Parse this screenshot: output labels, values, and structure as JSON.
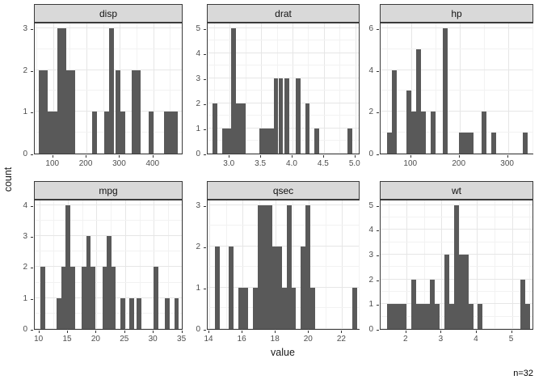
{
  "titles": {
    "x_axis": "value",
    "y_axis": "count"
  },
  "annotation": {
    "sample_size": "n=32"
  },
  "colors": {
    "bar_fill": "#595959",
    "strip_background": "#D9D9D9",
    "strip_text": "#141414",
    "panel_border": "#3B3B3B",
    "grid_major": "#E6E6E6",
    "grid_minor": "#F2F2F2",
    "tick_text": "#4D4D4D",
    "title_text": "#1A1A1A",
    "background": "#FFFFFF"
  },
  "chart_data": {
    "type": "bar",
    "subtype": "faceted-histograms",
    "x_axis_title": "value",
    "y_axis_title": "count",
    "legend": "none",
    "grid": "on",
    "facets": [
      {
        "label": "disp",
        "xmin": 45,
        "xmax": 490,
        "x_ticks": [
          100,
          200,
          300,
          400
        ],
        "x_tick_labels": [
          "100",
          "200",
          "300",
          "400"
        ],
        "x_minor": [
          50,
          150,
          250,
          350,
          450
        ],
        "y_max": 3,
        "y_ticks": [
          0,
          1,
          2,
          3
        ],
        "y_minor": [
          0.5,
          1.5,
          2.5
        ],
        "bars": [
          [
            57,
            71,
            2
          ],
          [
            71,
            84,
            2
          ],
          [
            84,
            98,
            1
          ],
          [
            98,
            112,
            1
          ],
          [
            112,
            125,
            3
          ],
          [
            125,
            139,
            3
          ],
          [
            139,
            153,
            2
          ],
          [
            153,
            166,
            2
          ],
          [
            217,
            231,
            1
          ],
          [
            254,
            268,
            1
          ],
          [
            268,
            281,
            3
          ],
          [
            288,
            302,
            2
          ],
          [
            302,
            316,
            1
          ],
          [
            336,
            350,
            2
          ],
          [
            350,
            363,
            2
          ],
          [
            386,
            400,
            1
          ],
          [
            432,
            445,
            1
          ],
          [
            445,
            459,
            1
          ],
          [
            459,
            472,
            1
          ]
        ]
      },
      {
        "label": "drat",
        "xmin": 2.65,
        "xmax": 5.08,
        "x_ticks": [
          3.0,
          3.5,
          4.0,
          4.5,
          5.0
        ],
        "x_tick_labels": [
          "3.0",
          "3.5",
          "4.0",
          "4.5",
          "5.0"
        ],
        "x_minor": [
          2.75,
          3.25,
          3.75,
          4.25,
          4.75
        ],
        "y_max": 5,
        "y_ticks": [
          0,
          1,
          2,
          3,
          4,
          5
        ],
        "y_minor": [
          0.5,
          1.5,
          2.5,
          3.5,
          4.5
        ],
        "bars": [
          [
            2.725,
            2.8,
            2
          ],
          [
            2.875,
            2.95,
            1
          ],
          [
            2.95,
            3.025,
            1
          ],
          [
            3.025,
            3.1,
            5
          ],
          [
            3.1,
            3.175,
            2
          ],
          [
            3.175,
            3.25,
            2
          ],
          [
            3.475,
            3.55,
            1
          ],
          [
            3.55,
            3.625,
            1
          ],
          [
            3.625,
            3.7,
            1
          ],
          [
            3.7,
            3.775,
            3
          ],
          [
            3.775,
            3.85,
            3
          ],
          [
            3.875,
            3.95,
            3
          ],
          [
            4.05,
            4.125,
            3
          ],
          [
            4.2,
            4.275,
            2
          ],
          [
            4.35,
            4.425,
            1
          ],
          [
            4.875,
            4.95,
            1
          ]
        ]
      },
      {
        "label": "hp",
        "xmin": 37,
        "xmax": 354,
        "x_ticks": [
          100,
          200,
          300
        ],
        "x_tick_labels": [
          "100",
          "200",
          "300"
        ],
        "x_minor": [
          50,
          150,
          250,
          350
        ],
        "y_max": 6,
        "y_ticks": [
          0,
          2,
          4,
          6
        ],
        "y_minor": [
          1,
          3,
          5
        ],
        "bars": [
          [
            51,
            61,
            1
          ],
          [
            61,
            71,
            4
          ],
          [
            91,
            101,
            3
          ],
          [
            101,
            111,
            2
          ],
          [
            111,
            121,
            5
          ],
          [
            121,
            131,
            2
          ],
          [
            141,
            151,
            2
          ],
          [
            165,
            175,
            6
          ],
          [
            199,
            209,
            1
          ],
          [
            209,
            219,
            1
          ],
          [
            219,
            229,
            1
          ],
          [
            245,
            255,
            2
          ],
          [
            265,
            275,
            1
          ],
          [
            331,
            341,
            1
          ]
        ]
      },
      {
        "label": "mpg",
        "xmin": 9.2,
        "xmax": 35.2,
        "x_ticks": [
          10,
          15,
          20,
          25,
          30,
          35
        ],
        "x_tick_labels": [
          "10",
          "15",
          "20",
          "25",
          "30",
          "35"
        ],
        "x_minor": [
          12.5,
          17.5,
          22.5,
          27.5,
          32.5
        ],
        "y_max": 4,
        "y_ticks": [
          0,
          1,
          2,
          3,
          4
        ],
        "y_minor": [
          0.5,
          1.5,
          2.5,
          3.5
        ],
        "bars": [
          [
            10.2,
            11.0,
            2
          ],
          [
            13.0,
            13.8,
            1
          ],
          [
            13.8,
            14.6,
            2
          ],
          [
            14.6,
            15.4,
            4
          ],
          [
            15.4,
            16.2,
            2
          ],
          [
            17.4,
            18.2,
            2
          ],
          [
            18.2,
            19.0,
            3
          ],
          [
            19.0,
            19.8,
            2
          ],
          [
            21.0,
            21.8,
            2
          ],
          [
            21.8,
            22.6,
            3
          ],
          [
            22.6,
            23.4,
            2
          ],
          [
            24.2,
            25.0,
            1
          ],
          [
            25.8,
            26.6,
            1
          ],
          [
            27.0,
            27.8,
            1
          ],
          [
            30.0,
            30.8,
            2
          ],
          [
            32.0,
            32.8,
            1
          ],
          [
            33.6,
            34.4,
            1
          ]
        ]
      },
      {
        "label": "qsec",
        "xmin": 13.9,
        "xmax": 23.1,
        "x_ticks": [
          14,
          16,
          18,
          20,
          22
        ],
        "x_tick_labels": [
          "14",
          "16",
          "18",
          "20",
          "22"
        ],
        "x_minor": [
          15,
          17,
          19,
          21,
          23
        ],
        "y_max": 3,
        "y_ticks": [
          0,
          1,
          2,
          3
        ],
        "y_minor": [
          0.5,
          1.5,
          2.5
        ],
        "bars": [
          [
            14.35,
            14.64,
            2
          ],
          [
            15.15,
            15.44,
            2
          ],
          [
            15.75,
            16.04,
            1
          ],
          [
            16.04,
            16.33,
            1
          ],
          [
            16.62,
            16.91,
            1
          ],
          [
            16.91,
            17.2,
            3
          ],
          [
            17.2,
            17.49,
            3
          ],
          [
            17.49,
            17.78,
            3
          ],
          [
            17.78,
            18.07,
            2
          ],
          [
            18.07,
            18.36,
            2
          ],
          [
            18.36,
            18.65,
            1
          ],
          [
            18.65,
            18.94,
            3
          ],
          [
            18.94,
            19.23,
            1
          ],
          [
            19.52,
            19.81,
            2
          ],
          [
            19.81,
            20.1,
            3
          ],
          [
            20.1,
            20.39,
            1
          ],
          [
            22.61,
            22.9,
            1
          ]
        ]
      },
      {
        "label": "wt",
        "xmin": 1.27,
        "xmax": 5.63,
        "x_ticks": [
          2,
          3,
          4,
          5
        ],
        "x_tick_labels": [
          "2",
          "3",
          "4",
          "5"
        ],
        "x_minor": [
          1.5,
          2.5,
          3.5,
          4.5,
          5.5
        ],
        "y_max": 5,
        "y_ticks": [
          0,
          1,
          2,
          3,
          4,
          5
        ],
        "y_minor": [
          0.5,
          1.5,
          2.5,
          3.5,
          4.5
        ],
        "bars": [
          [
            1.46,
            1.6,
            1
          ],
          [
            1.6,
            1.73,
            1
          ],
          [
            1.73,
            1.87,
            1
          ],
          [
            1.87,
            2.0,
            1
          ],
          [
            2.14,
            2.27,
            2
          ],
          [
            2.27,
            2.41,
            1
          ],
          [
            2.41,
            2.54,
            1
          ],
          [
            2.54,
            2.68,
            1
          ],
          [
            2.68,
            2.81,
            2
          ],
          [
            2.81,
            2.95,
            1
          ],
          [
            3.08,
            3.22,
            3
          ],
          [
            3.22,
            3.36,
            1
          ],
          [
            3.36,
            3.49,
            5
          ],
          [
            3.49,
            3.63,
            3
          ],
          [
            3.63,
            3.76,
            3
          ],
          [
            3.76,
            3.9,
            1
          ],
          [
            4.03,
            4.17,
            1
          ],
          [
            5.25,
            5.38,
            2
          ],
          [
            5.38,
            5.52,
            1
          ]
        ]
      }
    ]
  }
}
